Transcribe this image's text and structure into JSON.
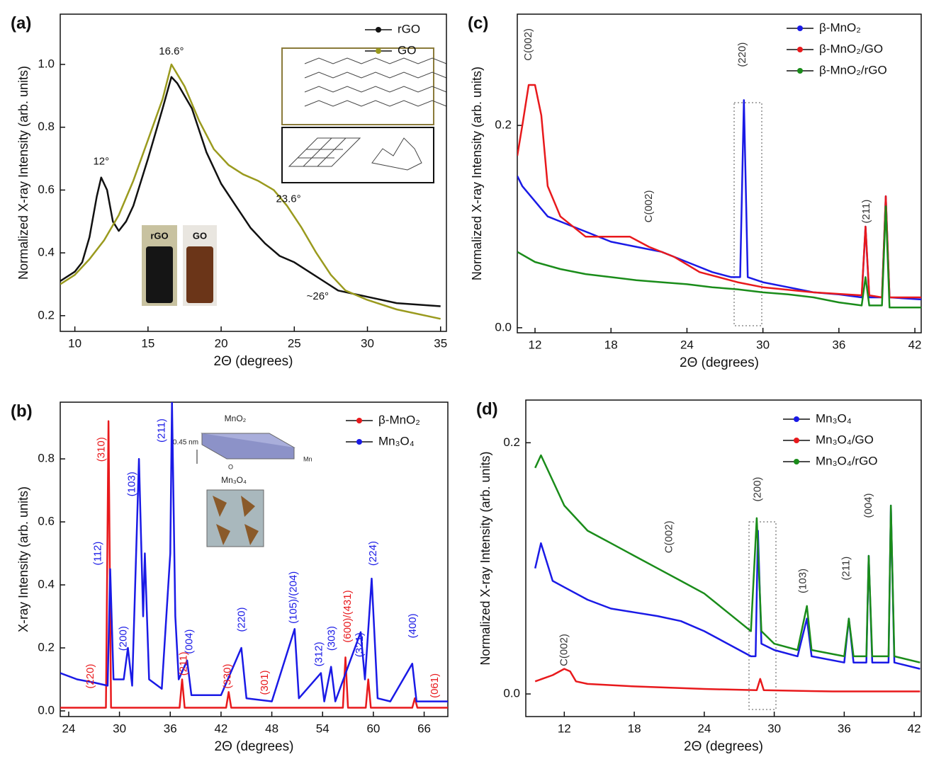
{
  "chart_data": [
    {
      "type": "line",
      "label": "(a)",
      "xlabel": "2Θ (degrees)",
      "ylabel": "Normalized X-ray Intensity (arb. units)",
      "xlim": [
        9,
        35.4
      ],
      "xticks": [
        10,
        15,
        20,
        25,
        30,
        35
      ],
      "ylim": [
        0.15,
        1.16
      ],
      "yticks": [
        0.2,
        0.4,
        0.6,
        0.8,
        {
          "value": 1,
          "label": "1.0"
        }
      ],
      "legend": "top-right",
      "series": [
        {
          "name": "rGO",
          "color": "#111111",
          "x": [
            9,
            10,
            10.5,
            11,
            11.5,
            11.8,
            12.2,
            12.6,
            13,
            13.5,
            14,
            15,
            16,
            16.6,
            17,
            18,
            19,
            20,
            21,
            22,
            23,
            24,
            25,
            26,
            27,
            28,
            29,
            30,
            32,
            35
          ],
          "values": [
            0.31,
            0.34,
            0.37,
            0.45,
            0.58,
            0.64,
            0.6,
            0.5,
            0.47,
            0.5,
            0.55,
            0.7,
            0.86,
            0.96,
            0.94,
            0.86,
            0.72,
            0.62,
            0.55,
            0.48,
            0.43,
            0.39,
            0.37,
            0.34,
            0.31,
            0.28,
            0.27,
            0.26,
            0.24,
            0.23
          ]
        },
        {
          "name": "GO",
          "color": "#9a9a1e",
          "x": [
            9,
            10,
            11,
            12,
            13,
            14,
            15,
            16,
            16.6,
            17.5,
            18.5,
            19.5,
            20.5,
            21.5,
            22.5,
            23.6,
            24.5,
            25.5,
            26.5,
            27.5,
            28.5,
            30,
            32,
            35
          ],
          "values": [
            0.3,
            0.33,
            0.38,
            0.44,
            0.52,
            0.63,
            0.76,
            0.89,
            1.0,
            0.93,
            0.82,
            0.73,
            0.68,
            0.65,
            0.63,
            0.6,
            0.55,
            0.48,
            0.4,
            0.33,
            0.28,
            0.25,
            0.22,
            0.19
          ]
        }
      ],
      "annotations": [
        {
          "text": "16.6°",
          "x": 16.6,
          "y": 1.04,
          "color": "#111111"
        },
        {
          "text": "12°",
          "x": 11.8,
          "y": 0.69,
          "color": "#111111"
        },
        {
          "text": "23.6°",
          "x": 24.6,
          "y": 0.57,
          "color": "#111111"
        },
        {
          "text": "~26°",
          "x": 26.6,
          "y": 0.26,
          "color": "#111111"
        }
      ],
      "inset_labels": [
        "rGO",
        "GO"
      ]
    },
    {
      "type": "line",
      "label": "(b)",
      "xlabel": "2Θ (degrees)",
      "ylabel": "X-ray Intensity (arb. units)",
      "xlim": [
        23,
        68.8
      ],
      "xticks": [
        24,
        30,
        36,
        42,
        48,
        54,
        60,
        66
      ],
      "ylim": [
        -0.018,
        0.98
      ],
      "yticks": [
        {
          "value": 0,
          "label": "0.0"
        },
        0.2,
        0.4,
        0.6,
        0.8
      ],
      "legend": "top-right",
      "series": [
        {
          "name": "β-MnO₂",
          "color": "#e8191c",
          "x": [
            23,
            28.4,
            28.7,
            29,
            37.1,
            37.4,
            37.7,
            42.6,
            42.9,
            43.2,
            56.4,
            56.7,
            57,
            59.1,
            59.4,
            59.7,
            64.6,
            64.9,
            65.2,
            68.8
          ],
          "values": [
            0.01,
            0.01,
            0.92,
            0.01,
            0.01,
            0.1,
            0.01,
            0.01,
            0.06,
            0.01,
            0.01,
            0.17,
            0.01,
            0.01,
            0.1,
            0.01,
            0.01,
            0.04,
            0.01,
            0.01
          ]
        },
        {
          "name": "Mn₃O₄",
          "color": "#1a1ae6",
          "x": [
            23,
            25,
            27,
            28.6,
            28.9,
            29.3,
            30.5,
            31,
            31.5,
            32.3,
            32.8,
            33,
            33.5,
            35,
            36,
            36.2,
            36.6,
            37,
            38,
            38.5,
            40,
            42,
            44.4,
            45,
            48,
            50.7,
            51.2,
            53.8,
            54.2,
            55,
            55.5,
            58.5,
            59,
            59.8,
            60.5,
            62,
            64.6,
            65.1,
            68.8
          ],
          "values": [
            0.12,
            0.1,
            0.09,
            0.08,
            0.45,
            0.1,
            0.1,
            0.2,
            0.08,
            0.8,
            0.3,
            0.5,
            0.1,
            0.07,
            0.5,
            0.98,
            0.3,
            0.1,
            0.16,
            0.05,
            0.05,
            0.05,
            0.2,
            0.04,
            0.03,
            0.26,
            0.04,
            0.12,
            0.03,
            0.14,
            0.03,
            0.25,
            0.1,
            0.42,
            0.04,
            0.03,
            0.15,
            0.03,
            0.03
          ]
        }
      ],
      "annotations": [
        {
          "text": "(310)",
          "x": 27.9,
          "y": 0.83,
          "color": "#e8191c",
          "orientation": "vertical"
        },
        {
          "text": "(220)",
          "x": 26.6,
          "y": 0.11,
          "color": "#e8191c",
          "orientation": "vertical"
        },
        {
          "text": "(211)",
          "x": 37.6,
          "y": 0.15,
          "color": "#e8191c",
          "orientation": "vertical"
        },
        {
          "text": "(330)",
          "x": 42.8,
          "y": 0.11,
          "color": "#e8191c",
          "orientation": "vertical"
        },
        {
          "text": "(301)",
          "x": 47.2,
          "y": 0.09,
          "color": "#e8191c",
          "orientation": "vertical"
        },
        {
          "text": "(600)/(431)",
          "x": 57,
          "y": 0.3,
          "color": "#e8191c",
          "orientation": "vertical"
        },
        {
          "text": "(061)",
          "x": 67.3,
          "y": 0.08,
          "color": "#e8191c",
          "orientation": "vertical"
        },
        {
          "text": "(112)",
          "x": 27.5,
          "y": 0.5,
          "color": "#1a1ae6",
          "orientation": "vertical"
        },
        {
          "text": "(200)",
          "x": 30.5,
          "y": 0.23,
          "color": "#1a1ae6",
          "orientation": "vertical"
        },
        {
          "text": "(103)",
          "x": 31.5,
          "y": 0.72,
          "color": "#1a1ae6",
          "orientation": "vertical"
        },
        {
          "text": "(211)",
          "x": 35,
          "y": 0.89,
          "color": "#1a1ae6",
          "orientation": "vertical"
        },
        {
          "text": "(004)",
          "x": 38.3,
          "y": 0.22,
          "color": "#1a1ae6",
          "orientation": "vertical"
        },
        {
          "text": "(220)",
          "x": 44.5,
          "y": 0.29,
          "color": "#1a1ae6",
          "orientation": "vertical"
        },
        {
          "text": "(105)/(204)",
          "x": 50.6,
          "y": 0.36,
          "color": "#1a1ae6",
          "orientation": "vertical"
        },
        {
          "text": "(312)",
          "x": 53.6,
          "y": 0.18,
          "color": "#1a1ae6",
          "orientation": "vertical"
        },
        {
          "text": "(303)",
          "x": 55.1,
          "y": 0.23,
          "color": "#1a1ae6",
          "orientation": "vertical"
        },
        {
          "text": "(321)",
          "x": 58.4,
          "y": 0.21,
          "color": "#1a1ae6",
          "orientation": "vertical"
        },
        {
          "text": "(224)",
          "x": 60,
          "y": 0.5,
          "color": "#1a1ae6",
          "orientation": "vertical"
        },
        {
          "text": "(400)",
          "x": 64.7,
          "y": 0.27,
          "color": "#1a1ae6",
          "orientation": "vertical"
        }
      ],
      "inset_labels": [
        "MnO₂",
        "0.45 nm",
        "Mn",
        "O",
        "Mn₃O₄"
      ]
    },
    {
      "type": "line",
      "label": "(c)",
      "xlabel": "2Θ (degrees)",
      "ylabel": "Normalized X-ray Intensity (arb. units)",
      "xlim": [
        10.6,
        42.5
      ],
      "xticks": [
        12,
        18,
        24,
        30,
        36,
        42
      ],
      "ylim": [
        -0.005,
        0.31
      ],
      "yticks": [
        {
          "value": 0,
          "label": "0.0"
        },
        0.2
      ],
      "legend": "top-right",
      "series": [
        {
          "name": "β-MnO₂",
          "color": "#1a1ae6",
          "x": [
            10.6,
            11,
            12,
            13,
            14,
            15,
            16,
            18,
            20,
            22,
            24,
            26,
            27.5,
            28.2,
            28.5,
            28.8,
            30,
            32,
            34,
            36,
            37.8,
            38.1,
            38.4,
            39.4,
            39.7,
            40,
            42.5
          ],
          "values": [
            0.15,
            0.14,
            0.125,
            0.11,
            0.105,
            0.1,
            0.095,
            0.085,
            0.08,
            0.075,
            0.065,
            0.055,
            0.05,
            0.05,
            0.225,
            0.05,
            0.045,
            0.04,
            0.035,
            0.033,
            0.03,
            0.1,
            0.03,
            0.03,
            0.13,
            0.03,
            0.028
          ]
        },
        {
          "name": "β-MnO₂/GO",
          "color": "#e8191c",
          "x": [
            10.6,
            11,
            11.5,
            12,
            12.5,
            13,
            14,
            16,
            18,
            19.5,
            21,
            23,
            25,
            28,
            30,
            34,
            37.8,
            38.1,
            38.4,
            39.4,
            39.7,
            40,
            42.5
          ],
          "values": [
            0.17,
            0.2,
            0.24,
            0.24,
            0.21,
            0.14,
            0.11,
            0.09,
            0.09,
            0.09,
            0.08,
            0.07,
            0.055,
            0.045,
            0.04,
            0.035,
            0.032,
            0.1,
            0.032,
            0.03,
            0.13,
            0.03,
            0.03
          ]
        },
        {
          "name": "β-MnO₂/rGO",
          "color": "#1a8c1a",
          "x": [
            10.6,
            12,
            14,
            16,
            18,
            20,
            22,
            24,
            26,
            28,
            30,
            32,
            34,
            36,
            37.8,
            38.1,
            38.4,
            39.4,
            39.7,
            40,
            42.5
          ],
          "values": [
            0.075,
            0.065,
            0.058,
            0.053,
            0.05,
            0.047,
            0.045,
            0.043,
            0.04,
            0.038,
            0.035,
            0.033,
            0.03,
            0.025,
            0.022,
            0.05,
            0.022,
            0.022,
            0.12,
            0.02,
            0.02
          ]
        }
      ],
      "annotations": [
        {
          "text": "C(002)",
          "x": 11.5,
          "y": 0.28,
          "color": "#333333",
          "orientation": "vertical"
        },
        {
          "text": "(220)",
          "x": 28.4,
          "y": 0.27,
          "color": "#333333",
          "orientation": "vertical"
        },
        {
          "text": "C(002)",
          "x": 21,
          "y": 0.12,
          "color": "#333333",
          "orientation": "vertical"
        },
        {
          "text": "(211)",
          "x": 38.2,
          "y": 0.115,
          "color": "#333333",
          "orientation": "vertical"
        }
      ]
    },
    {
      "type": "line",
      "label": "(d)",
      "xlabel": "2Θ (degrees)",
      "ylabel": "Normalized X-ray Intensity (arb. units)",
      "xlim": [
        8.7,
        42.6
      ],
      "xticks": [
        12,
        18,
        24,
        30,
        36,
        42
      ],
      "ylim": [
        -0.018,
        0.234
      ],
      "yticks": [
        {
          "value": 0,
          "label": "0.0"
        },
        0.2
      ],
      "legend": "top-right",
      "series": [
        {
          "name": "Mn₃O₄",
          "color": "#1a1ae6",
          "x": [
            9.5,
            10,
            11,
            12,
            14,
            16,
            18,
            20,
            22,
            24,
            26,
            28,
            28.4,
            28.6,
            28.9,
            30,
            32,
            32.8,
            33.2,
            36,
            36.4,
            36.8,
            37.9,
            38.1,
            38.4,
            39.8,
            40,
            40.3,
            42.5
          ],
          "values": [
            0.1,
            0.12,
            0.09,
            0.085,
            0.075,
            0.068,
            0.065,
            0.062,
            0.058,
            0.05,
            0.04,
            0.03,
            0.03,
            0.13,
            0.04,
            0.035,
            0.03,
            0.06,
            0.03,
            0.025,
            0.06,
            0.025,
            0.025,
            0.11,
            0.025,
            0.025,
            0.15,
            0.025,
            0.02
          ]
        },
        {
          "name": "Mn₃O₄/GO",
          "color": "#e8191c",
          "x": [
            9.5,
            11,
            12,
            12.5,
            13,
            14,
            18,
            24,
            28.5,
            28.8,
            29.1,
            35,
            42.5
          ],
          "values": [
            0.01,
            0.015,
            0.02,
            0.018,
            0.01,
            0.008,
            0.006,
            0.004,
            0.003,
            0.012,
            0.003,
            0.002,
            0.002
          ]
        },
        {
          "name": "Mn₃O₄/rGO",
          "color": "#1a8c1a",
          "x": [
            9.5,
            10,
            11,
            12,
            14,
            16,
            18,
            20,
            22,
            24,
            26,
            28,
            28.5,
            28.9,
            30,
            32,
            32.8,
            33.2,
            36,
            36.4,
            36.8,
            37.9,
            38.1,
            38.4,
            39.8,
            40,
            40.3,
            42.5
          ],
          "values": [
            0.18,
            0.19,
            0.17,
            0.15,
            0.13,
            0.12,
            0.11,
            0.1,
            0.09,
            0.08,
            0.065,
            0.05,
            0.14,
            0.05,
            0.04,
            0.035,
            0.07,
            0.035,
            0.03,
            0.06,
            0.03,
            0.03,
            0.11,
            0.03,
            0.03,
            0.15,
            0.03,
            0.025
          ]
        }
      ],
      "annotations": [
        {
          "text": "C(002)",
          "x": 21,
          "y": 0.125,
          "color": "#333333",
          "orientation": "vertical"
        },
        {
          "text": "(200)",
          "x": 28.6,
          "y": 0.163,
          "color": "#333333",
          "orientation": "vertical"
        },
        {
          "text": "(103)",
          "x": 32.5,
          "y": 0.09,
          "color": "#333333",
          "orientation": "vertical"
        },
        {
          "text": "(211)",
          "x": 36.2,
          "y": 0.1,
          "color": "#333333",
          "orientation": "vertical"
        },
        {
          "text": "(004)",
          "x": 38.1,
          "y": 0.15,
          "color": "#333333",
          "orientation": "vertical"
        },
        {
          "text": "C(002)",
          "x": 12,
          "y": 0.035,
          "color": "#333333",
          "orientation": "vertical"
        }
      ]
    }
  ]
}
